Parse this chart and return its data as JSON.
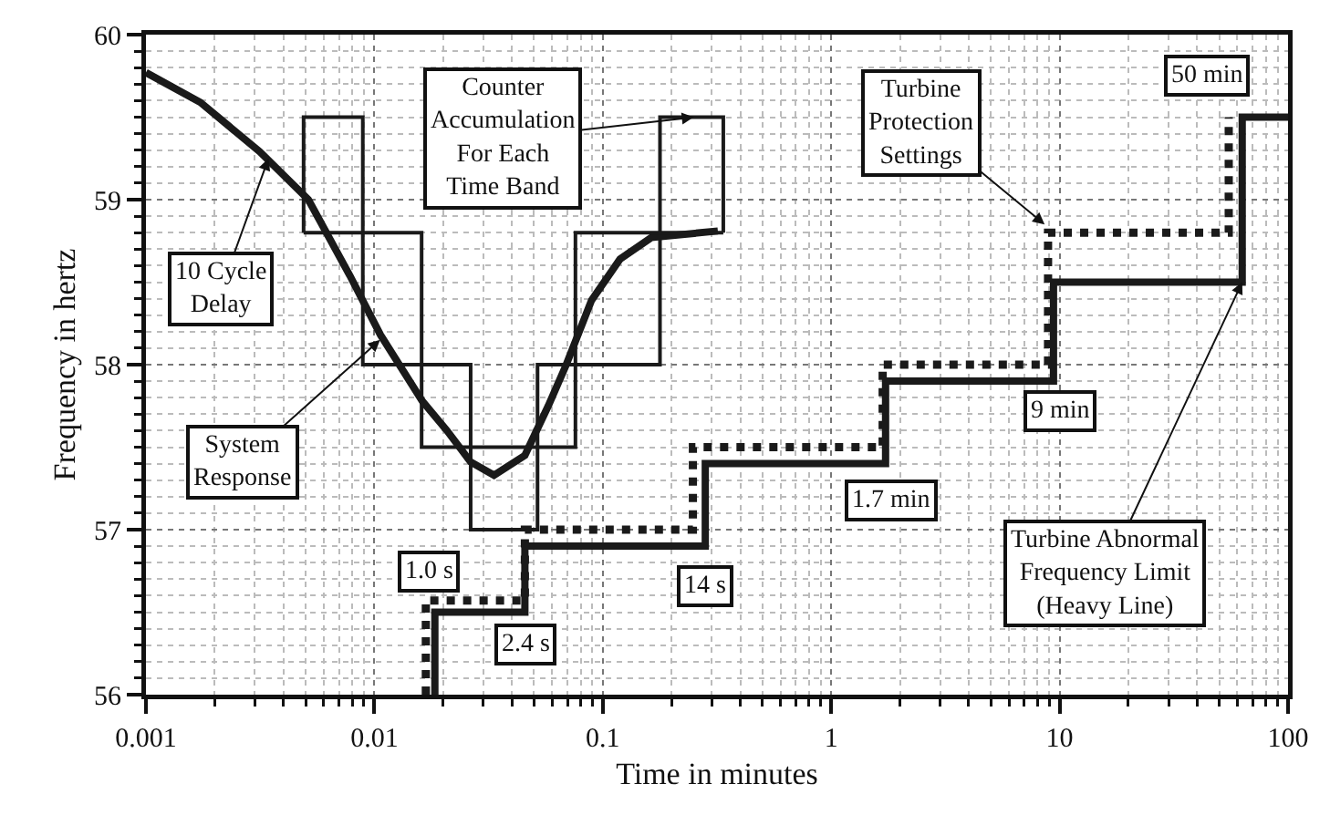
{
  "chart_data": {
    "type": "line",
    "xlabel": "Time in minutes",
    "ylabel": "Frequency in hertz",
    "log": "x",
    "xlim": [
      0.001,
      100
    ],
    "xticks": [
      0.001,
      0.01,
      0.1,
      1,
      10,
      100
    ],
    "ylim": [
      56,
      60
    ],
    "yticks": [
      56,
      57,
      58,
      59,
      60
    ],
    "grid": true,
    "marker": "none",
    "series": [
      {
        "color": "#1a1a1a",
        "line_style": "solid",
        "x": [
          0.001,
          0.00173,
          0.00315,
          0.00514,
          0.00781,
          0.01064,
          0.0162,
          0.0208,
          0.0264,
          0.0334,
          0.0456,
          0.0577,
          0.0692,
          0.0893,
          0.119,
          0.163,
          0.319
        ],
        "values": [
          59.77,
          59.59,
          59.29,
          59.0,
          58.54,
          58.18,
          57.78,
          57.6,
          57.41,
          57.33,
          57.45,
          57.75,
          58.0,
          58.39,
          58.64,
          58.77,
          58.81
        ]
      },
      {
        "color": "#1a1a1a",
        "line_style": "solid",
        "x": [
          0.0049,
          0.0049,
          0.0089,
          0.0089,
          0.0264,
          0.0264,
          0.0518,
          0.0518,
          0.178,
          0.178,
          0.337,
          0.337
        ],
        "values": [
          58.8,
          59.5,
          59.5,
          58.0,
          58.0,
          57.0,
          57.0,
          58.0,
          58.0,
          59.5,
          59.5,
          58.8
        ]
      },
      {
        "color": "#1a1a1a",
        "line_style": "solid",
        "x": [
          0.0049,
          0.0161,
          0.0161,
          0.0759,
          0.0759,
          0.337
        ],
        "values": [
          58.8,
          58.8,
          57.5,
          57.5,
          58.8,
          58.8
        ]
      },
      {
        "color": "#1a1a1a",
        "line_style": "dotted",
        "x": [
          0.0168,
          0.0168,
          0.0456,
          0.0456,
          0.248,
          0.248,
          1.68,
          1.68,
          8.9,
          8.9,
          55,
          55
        ],
        "values": [
          56,
          56.57,
          56.57,
          57.0,
          57.0,
          57.5,
          57.5,
          58.0,
          58.0,
          58.8,
          58.8,
          59.5
        ]
      },
      {
        "color": "#1a1a1a",
        "line_style": "solid",
        "x": [
          0.0184,
          0.0184,
          0.0456,
          0.0456,
          0.281,
          0.281,
          1.73,
          1.73,
          9.4,
          9.4,
          63,
          63,
          100
        ],
        "values": [
          56,
          56.5,
          56.5,
          56.9,
          56.9,
          57.4,
          57.4,
          57.9,
          57.9,
          58.5,
          58.5,
          59.5,
          59.5
        ]
      }
    ],
    "annotations": [
      {
        "text": "Counter Accumulation For Each Time Band",
        "x": 0.25,
        "y": 59.5
      },
      {
        "text": "10 Cycle Delay",
        "x": 0.00344,
        "y": 59.25
      },
      {
        "text": "System Response",
        "x": 0.0106,
        "y": 58.15
      },
      {
        "text": "Turbine Protection Settings",
        "x": 8.6,
        "y": 58.85
      },
      {
        "text": "Turbine Abnormal Frequency Limit (Heavy Line)",
        "x": 63,
        "y": 58.5
      },
      "1.0 s",
      "2.4 s",
      "14 s",
      "1.7 min",
      "9 min",
      "50 min"
    ]
  }
}
